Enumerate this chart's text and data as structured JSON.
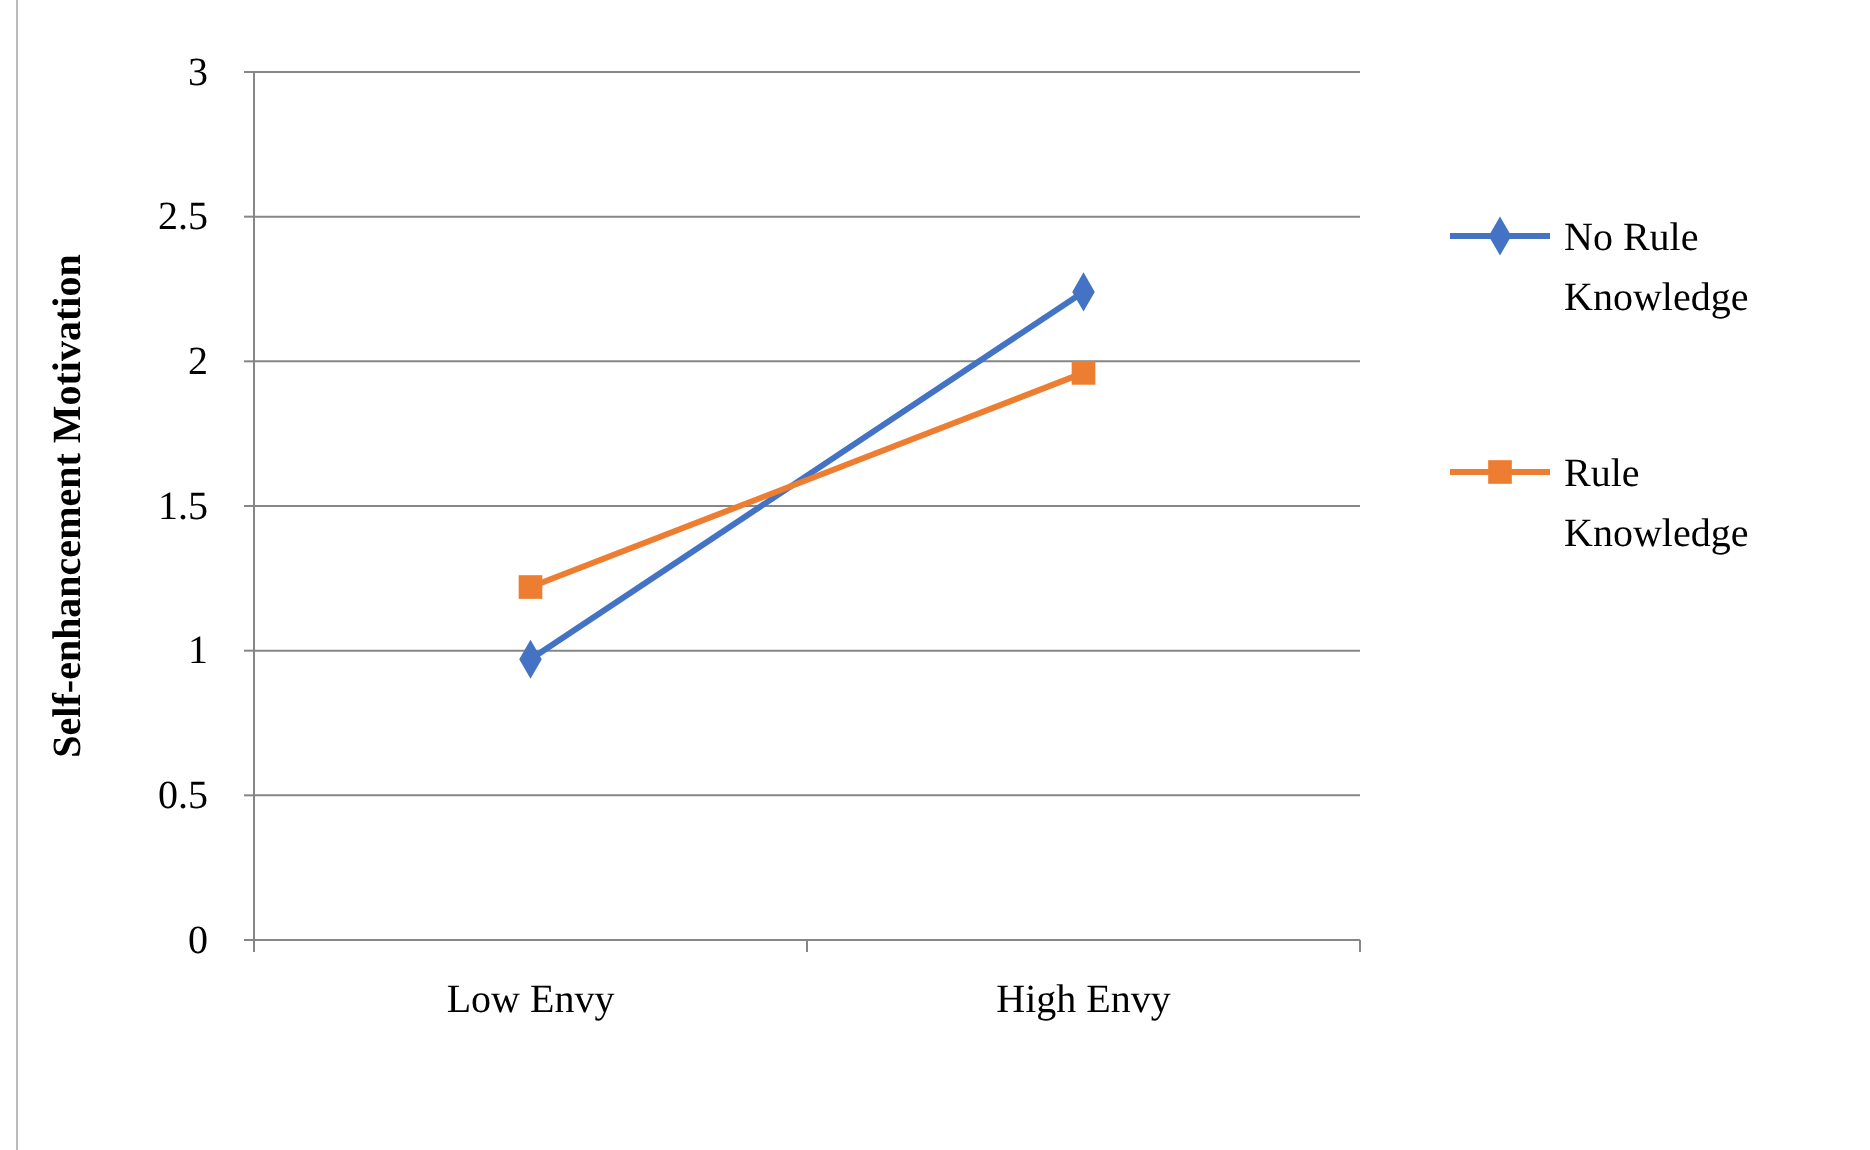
{
  "chart_data": {
    "type": "line",
    "ylabel": "Self-enhancement  Motivation",
    "categories": [
      "Low Envy",
      "High Envy"
    ],
    "series": [
      {
        "name": "No Rule Knowledge",
        "color": "#4472c4",
        "values": [
          0.97,
          2.24
        ],
        "marker": "diamond"
      },
      {
        "name": "Rule Knowledge",
        "color": "#ed7d31",
        "values": [
          1.22,
          1.96
        ],
        "marker": "square"
      }
    ],
    "ylim": [
      0,
      3
    ],
    "yticks": [
      0,
      0.5,
      1,
      1.5,
      2,
      2.5,
      3
    ],
    "grid": "y",
    "legend": "right",
    "line_style": "solid"
  }
}
